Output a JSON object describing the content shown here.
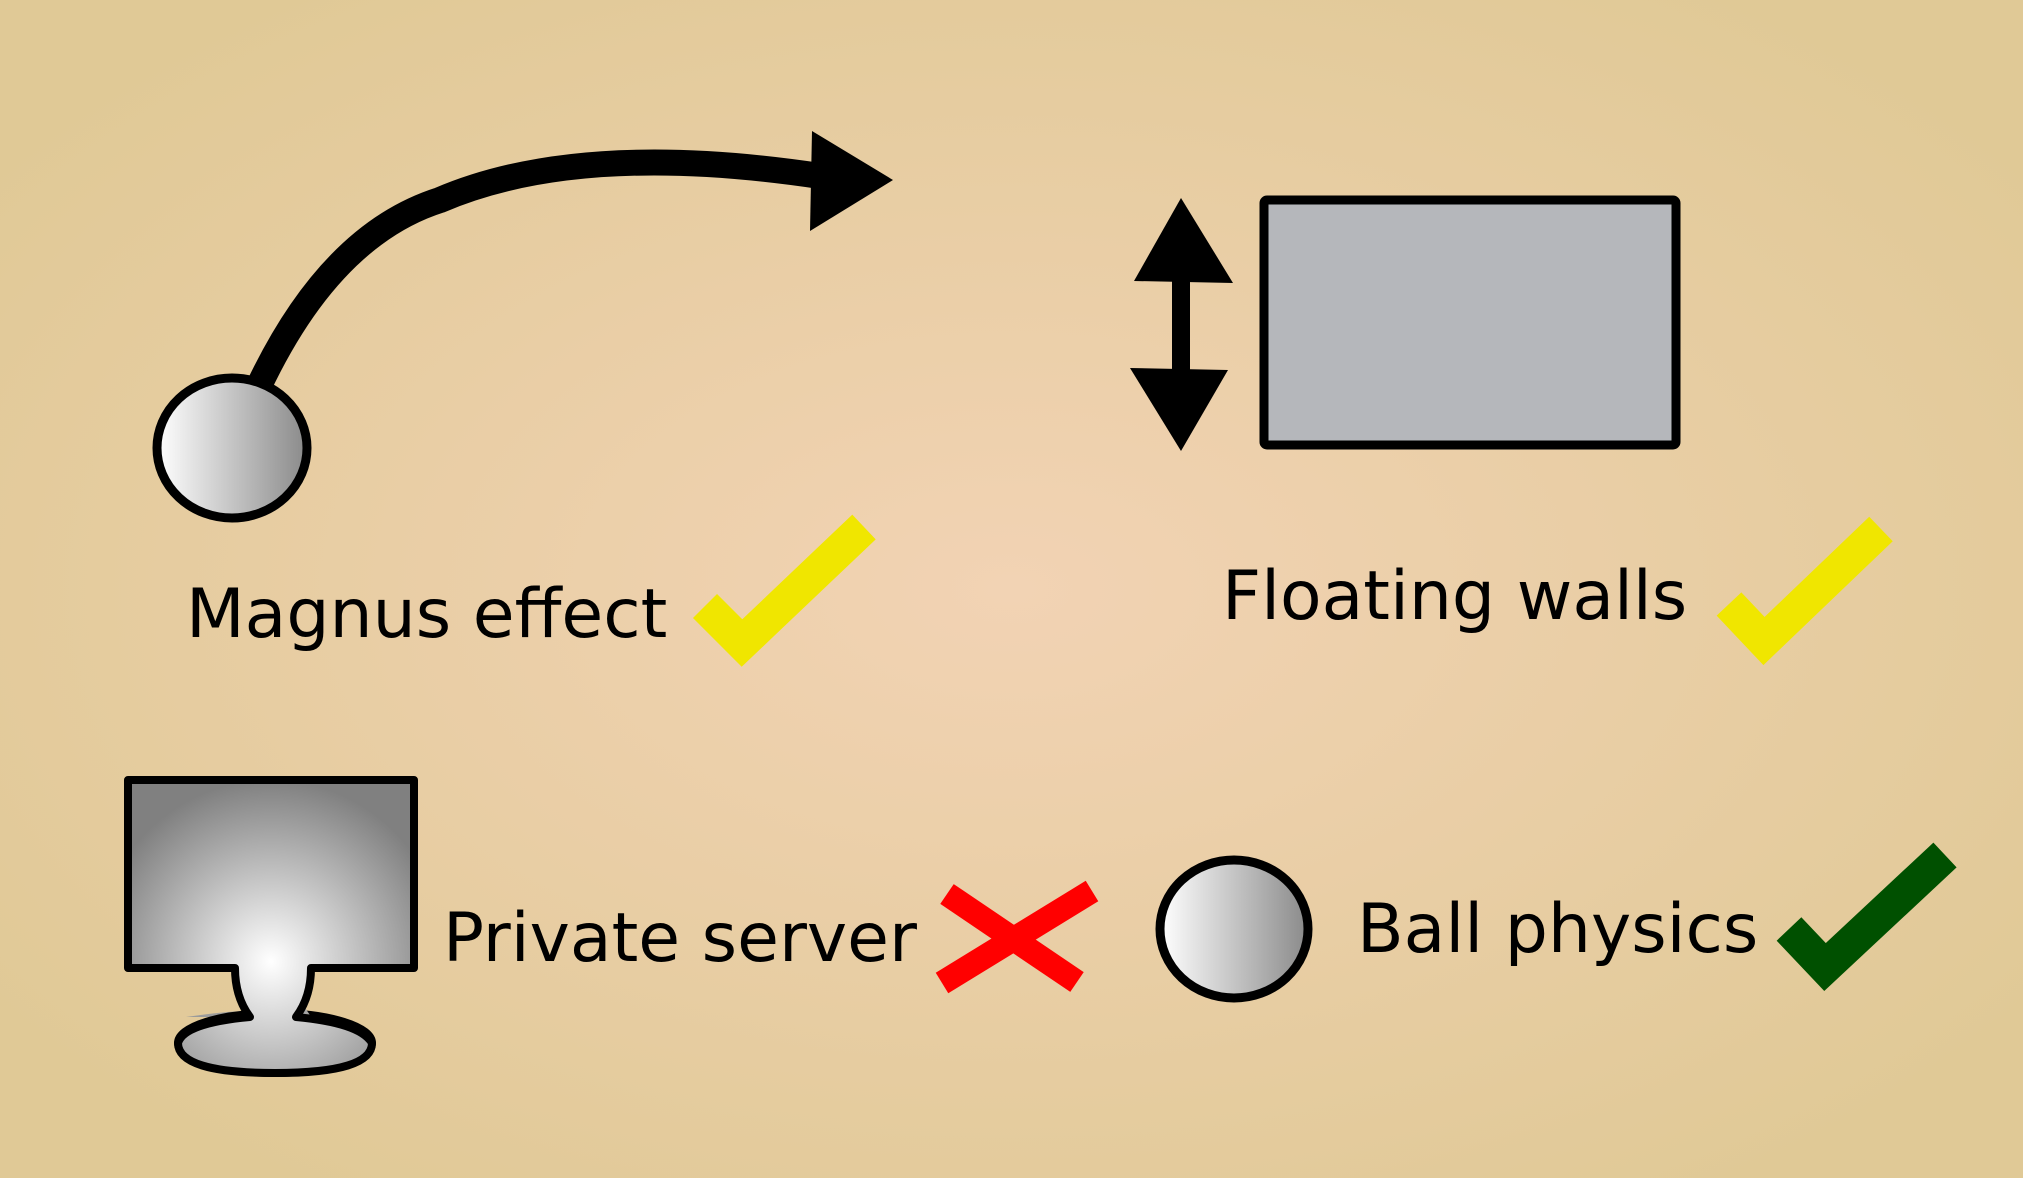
{
  "features": [
    {
      "id": "magnus",
      "label": "Magnus effect",
      "status": "done",
      "status_icon": "check-icon"
    },
    {
      "id": "walls",
      "label": "Floating walls",
      "status": "done",
      "status_icon": "check-icon"
    },
    {
      "id": "server",
      "label": "Private server",
      "status": "not-done",
      "status_icon": "cross-icon"
    },
    {
      "id": "ball",
      "label": "Ball physics",
      "status": "done",
      "status_icon": "check-icon"
    }
  ],
  "colors": {
    "background_center": "#f2d3b4",
    "background_edge": "#e0c996",
    "check_yellow": "#f0e600",
    "check_green": "#005000",
    "cross_red": "#ff0000",
    "wall_fill": "#b5b7bb",
    "outline": "#000000"
  }
}
